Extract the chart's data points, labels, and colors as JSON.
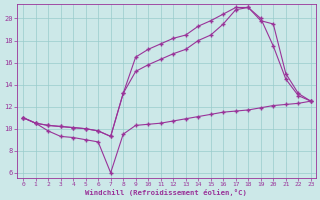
{
  "xlabel": "Windchill (Refroidissement éolien,°C)",
  "bg_color": "#cce8e8",
  "line_color": "#993399",
  "grid_color": "#99cccc",
  "xlim_min": -0.5,
  "xlim_max": 23.4,
  "ylim_min": 5.5,
  "ylim_max": 21.3,
  "xticks": [
    0,
    1,
    2,
    3,
    4,
    5,
    6,
    7,
    8,
    9,
    10,
    11,
    12,
    13,
    14,
    15,
    16,
    17,
    18,
    19,
    20,
    21,
    22,
    23
  ],
  "yticks": [
    6,
    8,
    10,
    12,
    14,
    16,
    18,
    20
  ],
  "line1_x": [
    0,
    1,
    2,
    3,
    4,
    5,
    6,
    7,
    8,
    9,
    10,
    11,
    12,
    13,
    14,
    15,
    16,
    17,
    18,
    19,
    20,
    21,
    22,
    23
  ],
  "line1_y": [
    11.0,
    10.5,
    9.8,
    9.3,
    9.2,
    9.0,
    8.8,
    6.0,
    9.5,
    10.3,
    10.4,
    10.5,
    10.7,
    10.9,
    11.1,
    11.3,
    11.5,
    11.6,
    11.7,
    11.9,
    12.1,
    12.2,
    12.3,
    12.5
  ],
  "line2_x": [
    0,
    1,
    2,
    3,
    4,
    5,
    6,
    7,
    8,
    9,
    10,
    11,
    12,
    13,
    14,
    15,
    16,
    17,
    18,
    19,
    20,
    21,
    22,
    23
  ],
  "line2_y": [
    11.0,
    10.5,
    10.3,
    10.2,
    10.1,
    10.0,
    9.8,
    9.3,
    13.2,
    16.5,
    17.2,
    17.7,
    18.2,
    18.5,
    19.3,
    19.8,
    20.4,
    21.0,
    21.0,
    19.8,
    19.5,
    15.0,
    13.2,
    12.5
  ],
  "line3_x": [
    0,
    1,
    2,
    3,
    4,
    5,
    6,
    7,
    8,
    9,
    10,
    11,
    12,
    13,
    14,
    15,
    16,
    17,
    18,
    19,
    20,
    21,
    22,
    23
  ],
  "line3_y": [
    11.0,
    10.5,
    10.3,
    10.2,
    10.1,
    10.0,
    9.8,
    9.3,
    13.2,
    15.2,
    15.8,
    16.3,
    16.8,
    17.2,
    18.0,
    18.5,
    19.5,
    20.8,
    21.0,
    20.0,
    17.5,
    14.5,
    13.0,
    12.5
  ]
}
